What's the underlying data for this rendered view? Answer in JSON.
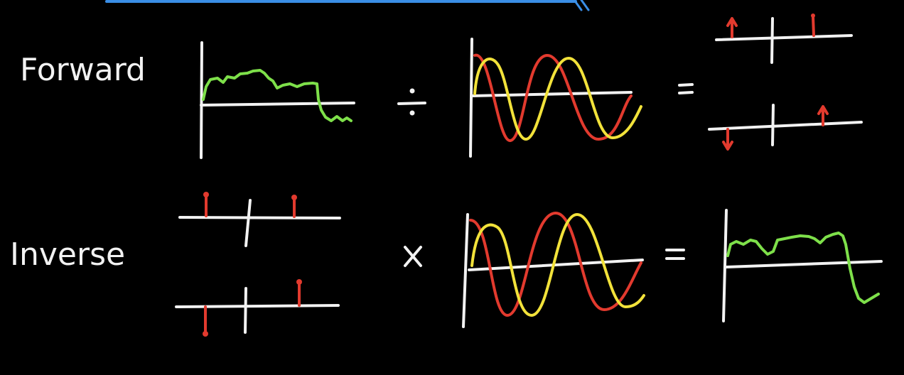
{
  "colors": {
    "background": "#000000",
    "chalk_white": "#f2f2f2",
    "signal_green": "#7ee04a",
    "wave_red": "#e23a2e",
    "wave_yellow": "#f2e23a",
    "accent_blue": "#3a8ee6"
  },
  "rows": {
    "forward": {
      "label": "Forward",
      "operator_1": "÷",
      "operator_2": "="
    },
    "inverse": {
      "label": "Inverse",
      "operator_1": "x",
      "operator_2": "="
    }
  }
}
